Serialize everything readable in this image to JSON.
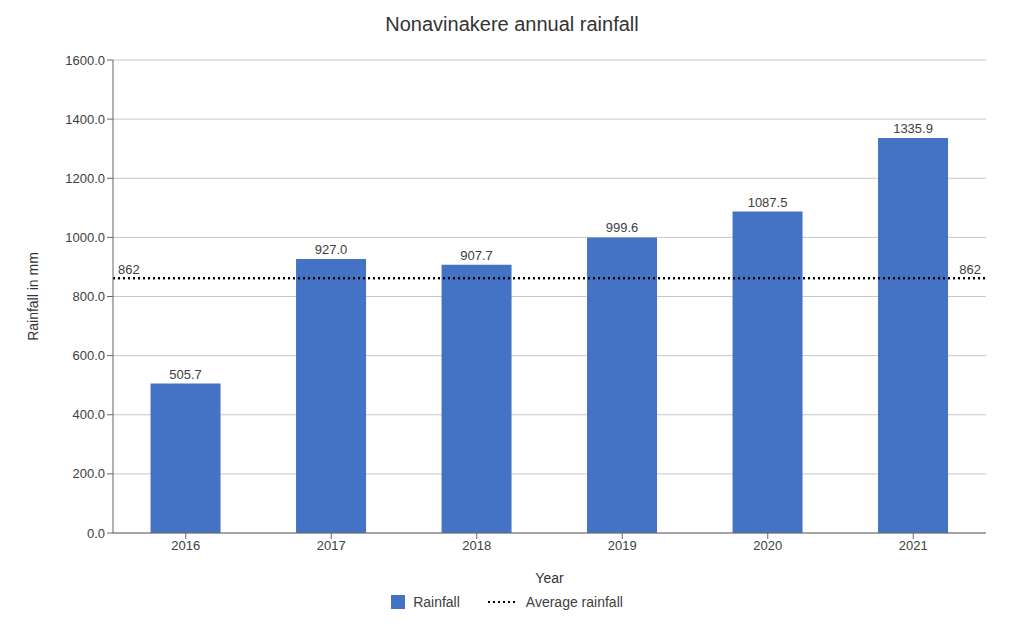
{
  "chart_data": {
    "type": "bar",
    "title": "Nonavinakere annual rainfall",
    "xlabel": "Year",
    "ylabel": "Rainfall in mm",
    "categories": [
      "2016",
      "2017",
      "2018",
      "2019",
      "2020",
      "2021"
    ],
    "series": [
      {
        "name": "Rainfall",
        "color": "#4472C4",
        "values": [
          505.7,
          927.0,
          907.7,
          999.6,
          1087.5,
          1335.9
        ],
        "value_labels": [
          "505.7",
          "927.0",
          "907.7",
          "999.6",
          "1087.5",
          "1335.9"
        ]
      }
    ],
    "average": {
      "name": "Average rainfall",
      "value": 862,
      "color": "#000000",
      "line_style": "dotted"
    },
    "data_labels": true,
    "ylim": [
      0,
      1600
    ],
    "yticks": [
      {
        "value": 0,
        "label": "0.0"
      },
      {
        "value": 200,
        "label": "200.0"
      },
      {
        "value": 400,
        "label": "400.0"
      },
      {
        "value": 600,
        "label": "600.0"
      },
      {
        "value": 800,
        "label": "800.0"
      },
      {
        "value": 1000,
        "label": "1000.0"
      },
      {
        "value": 1200,
        "label": "1200.0"
      },
      {
        "value": 1400,
        "label": "1400.0"
      },
      {
        "value": 1600,
        "label": "1600.0"
      }
    ],
    "grid": true,
    "legend": "bottom"
  }
}
